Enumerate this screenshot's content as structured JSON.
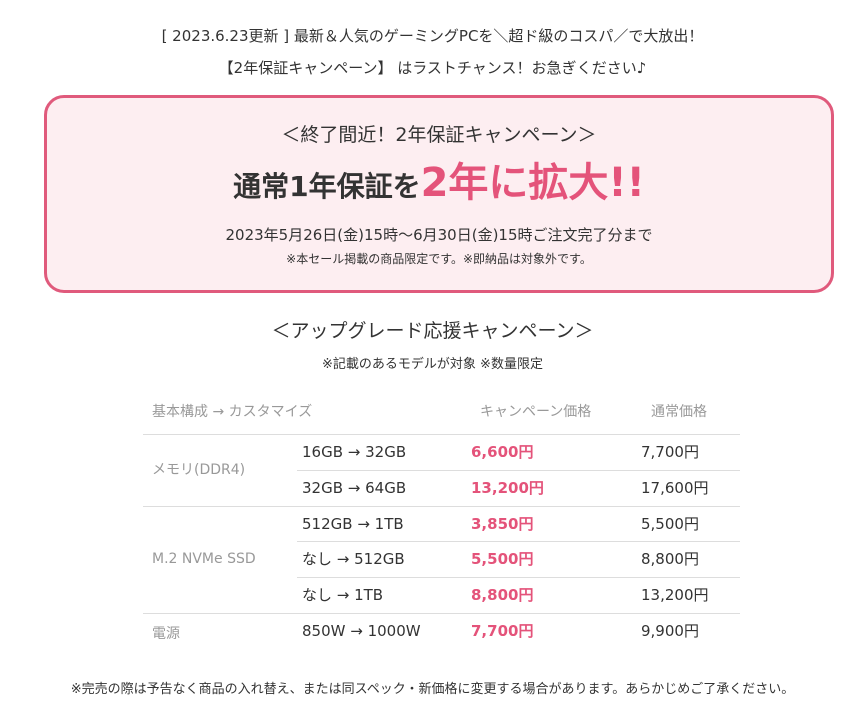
{
  "header": {
    "line1": "[ 2023.6.23更新 ] 最新＆人気のゲーミングPCを＼超ド級のコスパ／で大放出！",
    "line2": "【2年保証キャンペーン】 はラストチャンス！お急ぎください♪"
  },
  "banner": {
    "title": "＜終了間近！2年保証キャンペーン＞",
    "headline_prefix": "通常1年保証を",
    "headline_highlight": "2年に拡大!!",
    "period": "2023年5月26日(金)15時～6月30日(金)15時ご注文完了分まで",
    "note": "※本セール掲載の商品限定です。※即納品は対象外です。"
  },
  "upgrade": {
    "title": "＜アップグレード応援キャンペーン＞",
    "note": "※記載のあるモデルが対象 ※数量限定"
  },
  "table": {
    "headers": [
      "基本構成 → カスタマイズ",
      "キャンペーン価格",
      "通常価格"
    ],
    "groups": [
      {
        "label": "メモリ(DDR4)",
        "rows": [
          [
            "16GB → 32GB",
            "6,600円",
            "7,700円"
          ],
          [
            "32GB → 64GB",
            "13,200円",
            "17,600円"
          ]
        ]
      },
      {
        "label": "M.2 NVMe SSD",
        "rows": [
          [
            "512GB → 1TB",
            "3,850円",
            "5,500円"
          ],
          [
            "なし → 512GB",
            "5,500円",
            "8,800円"
          ],
          [
            "なし → 1TB",
            "8,800円",
            "13,200円"
          ]
        ]
      },
      {
        "label": "電源",
        "rows": [
          [
            "850W → 1000W",
            "7,700円",
            "9,900円"
          ]
        ]
      }
    ]
  },
  "footer": {
    "note": "※完売の際は予告なく商品の入れ替え、または同スペック・新価格に変更する場合があります。あらかじめご了承ください。"
  }
}
